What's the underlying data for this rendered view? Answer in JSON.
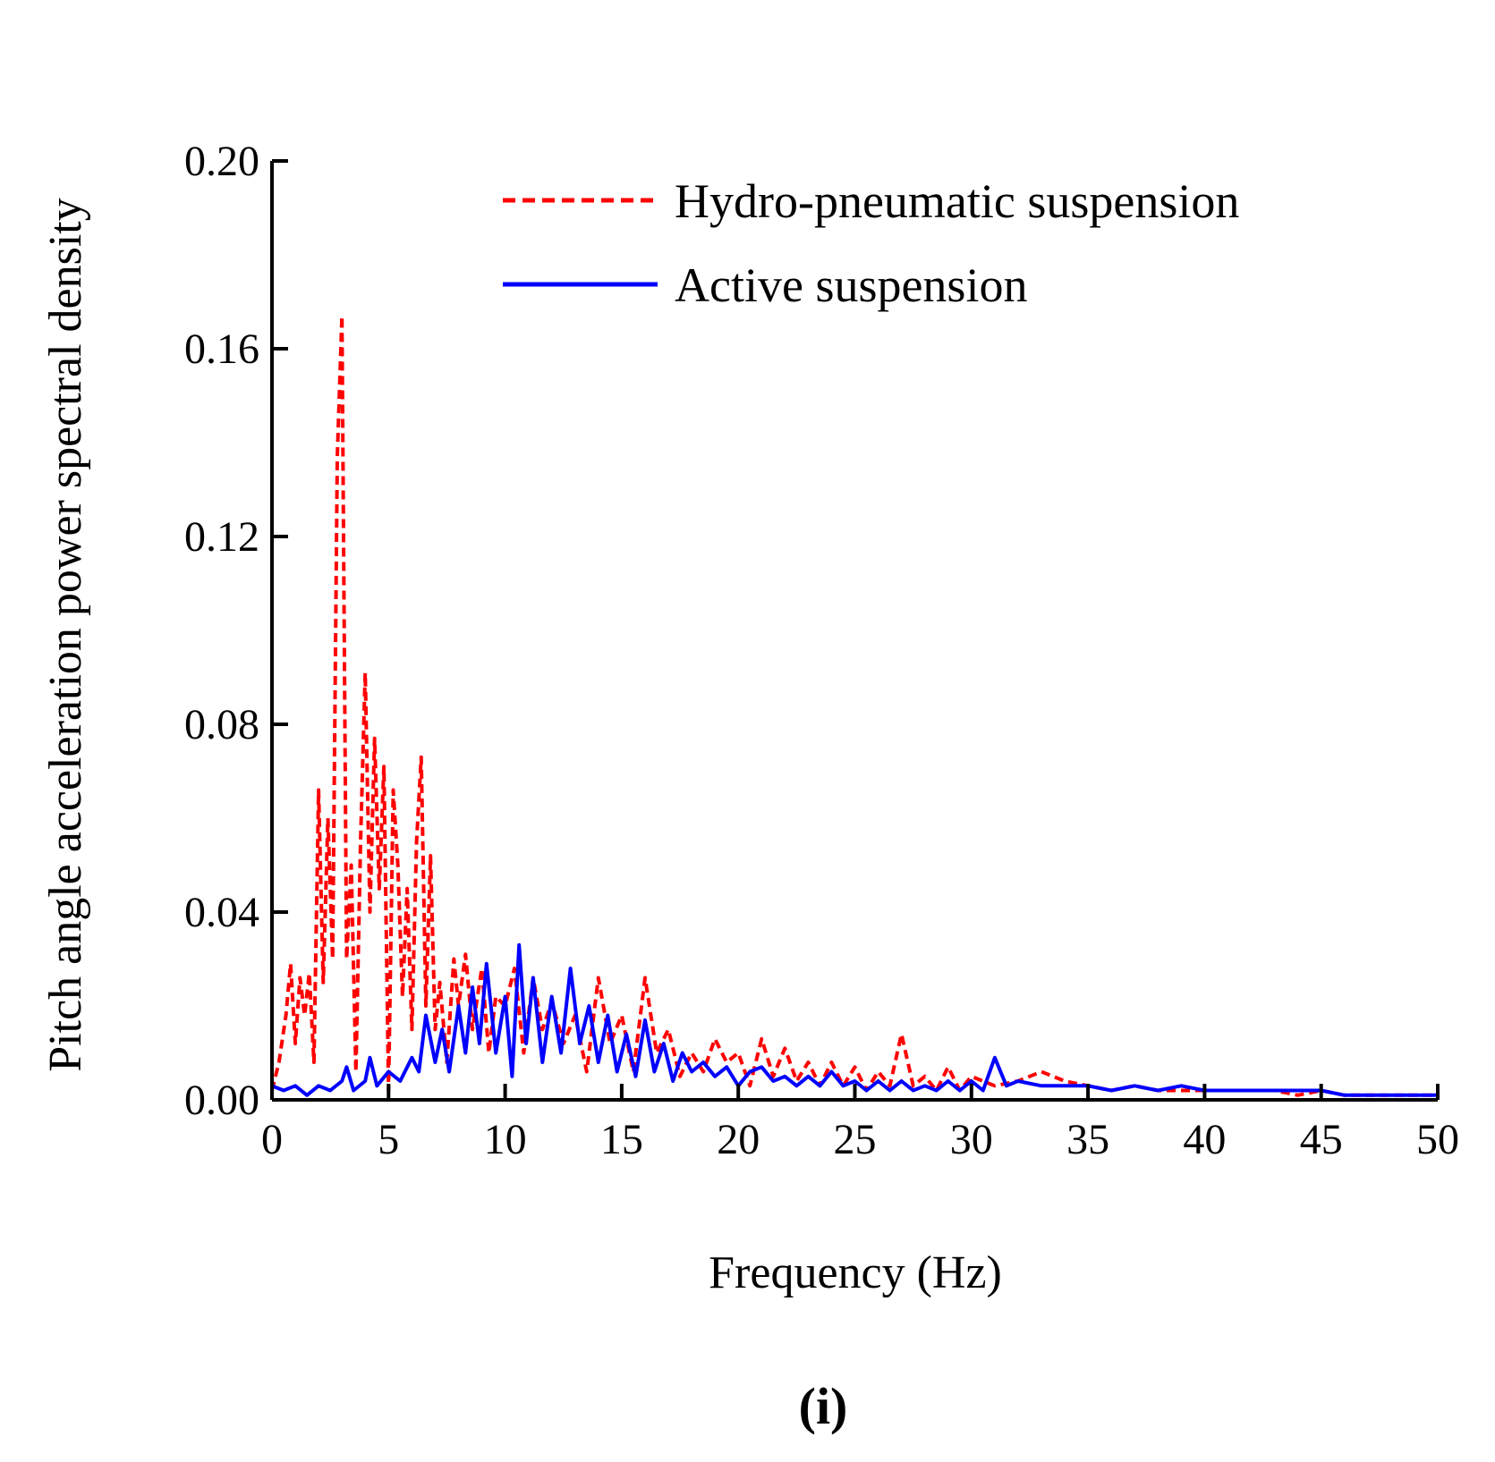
{
  "panel_label": "(i)",
  "chart_data": {
    "type": "line",
    "title": "",
    "xlabel": "Frequency (Hz)",
    "ylabel": "Pitch angle acceleration power spectral density",
    "xlim": [
      0,
      50
    ],
    "ylim": [
      0,
      0.2
    ],
    "xticks": [
      0,
      5,
      10,
      15,
      20,
      25,
      30,
      35,
      40,
      45,
      50
    ],
    "yticks": [
      "0.00",
      "0.04",
      "0.08",
      "0.12",
      "0.16",
      "0.20"
    ],
    "xtick_labels": [
      "0",
      "5",
      "10",
      "15",
      "20",
      "25",
      "30",
      "35",
      "40",
      "45",
      "50"
    ],
    "grid": false,
    "legend_position": "top-right",
    "series": [
      {
        "name": "Hydro-pneumatic suspension",
        "color": "#ff0000",
        "style": "dashed",
        "x": [
          0,
          0.3,
          0.6,
          0.8,
          1.0,
          1.2,
          1.4,
          1.6,
          1.8,
          2.0,
          2.2,
          2.4,
          2.6,
          2.8,
          3.0,
          3.2,
          3.4,
          3.6,
          3.8,
          4.0,
          4.2,
          4.4,
          4.6,
          4.8,
          5.0,
          5.2,
          5.4,
          5.6,
          5.8,
          6.0,
          6.2,
          6.4,
          6.6,
          6.8,
          7.0,
          7.2,
          7.5,
          7.8,
          8.0,
          8.3,
          8.6,
          9.0,
          9.3,
          9.6,
          10.0,
          10.4,
          10.8,
          11.2,
          11.6,
          12.0,
          12.5,
          13.0,
          13.5,
          14.0,
          14.5,
          15.0,
          15.5,
          16.0,
          16.5,
          17.0,
          17.5,
          18.0,
          18.5,
          19.0,
          19.5,
          20.0,
          20.5,
          21.0,
          21.5,
          22.0,
          22.5,
          23.0,
          23.5,
          24.0,
          24.5,
          25.0,
          25.5,
          26.0,
          26.5,
          27.0,
          27.5,
          28.0,
          28.5,
          29.0,
          29.5,
          30.0,
          31.0,
          32.0,
          33.0,
          34.0,
          35.0,
          36.0,
          37.0,
          38.0,
          39.0,
          40.0,
          41.0,
          42.0,
          43.0,
          44.0,
          45.0,
          46.0,
          47.0,
          48.0,
          49.0,
          50.0
        ],
        "values": [
          0.002,
          0.008,
          0.018,
          0.029,
          0.012,
          0.026,
          0.018,
          0.027,
          0.008,
          0.066,
          0.025,
          0.06,
          0.03,
          0.137,
          0.167,
          0.03,
          0.05,
          0.006,
          0.055,
          0.091,
          0.04,
          0.077,
          0.045,
          0.071,
          0.002,
          0.066,
          0.05,
          0.022,
          0.045,
          0.015,
          0.055,
          0.073,
          0.02,
          0.052,
          0.015,
          0.025,
          0.008,
          0.03,
          0.02,
          0.031,
          0.015,
          0.028,
          0.01,
          0.022,
          0.02,
          0.028,
          0.01,
          0.026,
          0.015,
          0.021,
          0.012,
          0.018,
          0.006,
          0.026,
          0.012,
          0.018,
          0.006,
          0.026,
          0.01,
          0.015,
          0.005,
          0.01,
          0.006,
          0.013,
          0.008,
          0.01,
          0.003,
          0.013,
          0.005,
          0.011,
          0.004,
          0.008,
          0.003,
          0.008,
          0.003,
          0.007,
          0.002,
          0.006,
          0.003,
          0.014,
          0.003,
          0.005,
          0.002,
          0.007,
          0.002,
          0.005,
          0.003,
          0.004,
          0.006,
          0.004,
          0.003,
          0.002,
          0.003,
          0.002,
          0.002,
          0.002,
          0.002,
          0.002,
          0.002,
          0.001,
          0.002,
          0.001,
          0.001,
          0.001,
          0.001,
          0.001
        ]
      },
      {
        "name": "Active suspension",
        "color": "#0000ff",
        "style": "solid",
        "x": [
          0,
          0.5,
          1.0,
          1.5,
          2.0,
          2.5,
          3.0,
          3.2,
          3.5,
          4.0,
          4.2,
          4.5,
          5.0,
          5.5,
          6.0,
          6.3,
          6.6,
          7.0,
          7.3,
          7.6,
          8.0,
          8.3,
          8.6,
          8.9,
          9.2,
          9.6,
          10.0,
          10.3,
          10.6,
          10.9,
          11.2,
          11.6,
          12.0,
          12.4,
          12.8,
          13.2,
          13.6,
          14.0,
          14.4,
          14.8,
          15.2,
          15.6,
          16.0,
          16.4,
          16.8,
          17.2,
          17.6,
          18.0,
          18.5,
          19.0,
          19.5,
          20.0,
          20.5,
          21.0,
          21.5,
          22.0,
          22.5,
          23.0,
          23.5,
          24.0,
          24.5,
          25.0,
          25.5,
          26.0,
          26.5,
          27.0,
          27.5,
          28.0,
          28.5,
          29.0,
          29.5,
          30.0,
          30.5,
          31.0,
          31.5,
          32.0,
          33.0,
          34.0,
          35.0,
          36.0,
          37.0,
          38.0,
          39.0,
          40.0,
          41.0,
          42.0,
          43.0,
          44.0,
          45.0,
          46.0,
          47.0,
          48.0,
          49.0,
          50.0
        ],
        "values": [
          0.003,
          0.002,
          0.003,
          0.001,
          0.003,
          0.002,
          0.004,
          0.007,
          0.002,
          0.004,
          0.009,
          0.003,
          0.006,
          0.004,
          0.009,
          0.006,
          0.018,
          0.008,
          0.015,
          0.006,
          0.02,
          0.01,
          0.024,
          0.012,
          0.029,
          0.01,
          0.022,
          0.005,
          0.033,
          0.012,
          0.026,
          0.008,
          0.022,
          0.01,
          0.028,
          0.012,
          0.02,
          0.008,
          0.018,
          0.006,
          0.014,
          0.005,
          0.017,
          0.006,
          0.012,
          0.004,
          0.01,
          0.006,
          0.008,
          0.005,
          0.007,
          0.003,
          0.006,
          0.007,
          0.004,
          0.005,
          0.003,
          0.005,
          0.003,
          0.006,
          0.003,
          0.004,
          0.002,
          0.004,
          0.002,
          0.004,
          0.002,
          0.003,
          0.002,
          0.004,
          0.002,
          0.004,
          0.002,
          0.009,
          0.003,
          0.004,
          0.003,
          0.003,
          0.003,
          0.002,
          0.003,
          0.002,
          0.003,
          0.002,
          0.002,
          0.002,
          0.002,
          0.002,
          0.002,
          0.001,
          0.001,
          0.001,
          0.001,
          0.001
        ]
      }
    ]
  }
}
